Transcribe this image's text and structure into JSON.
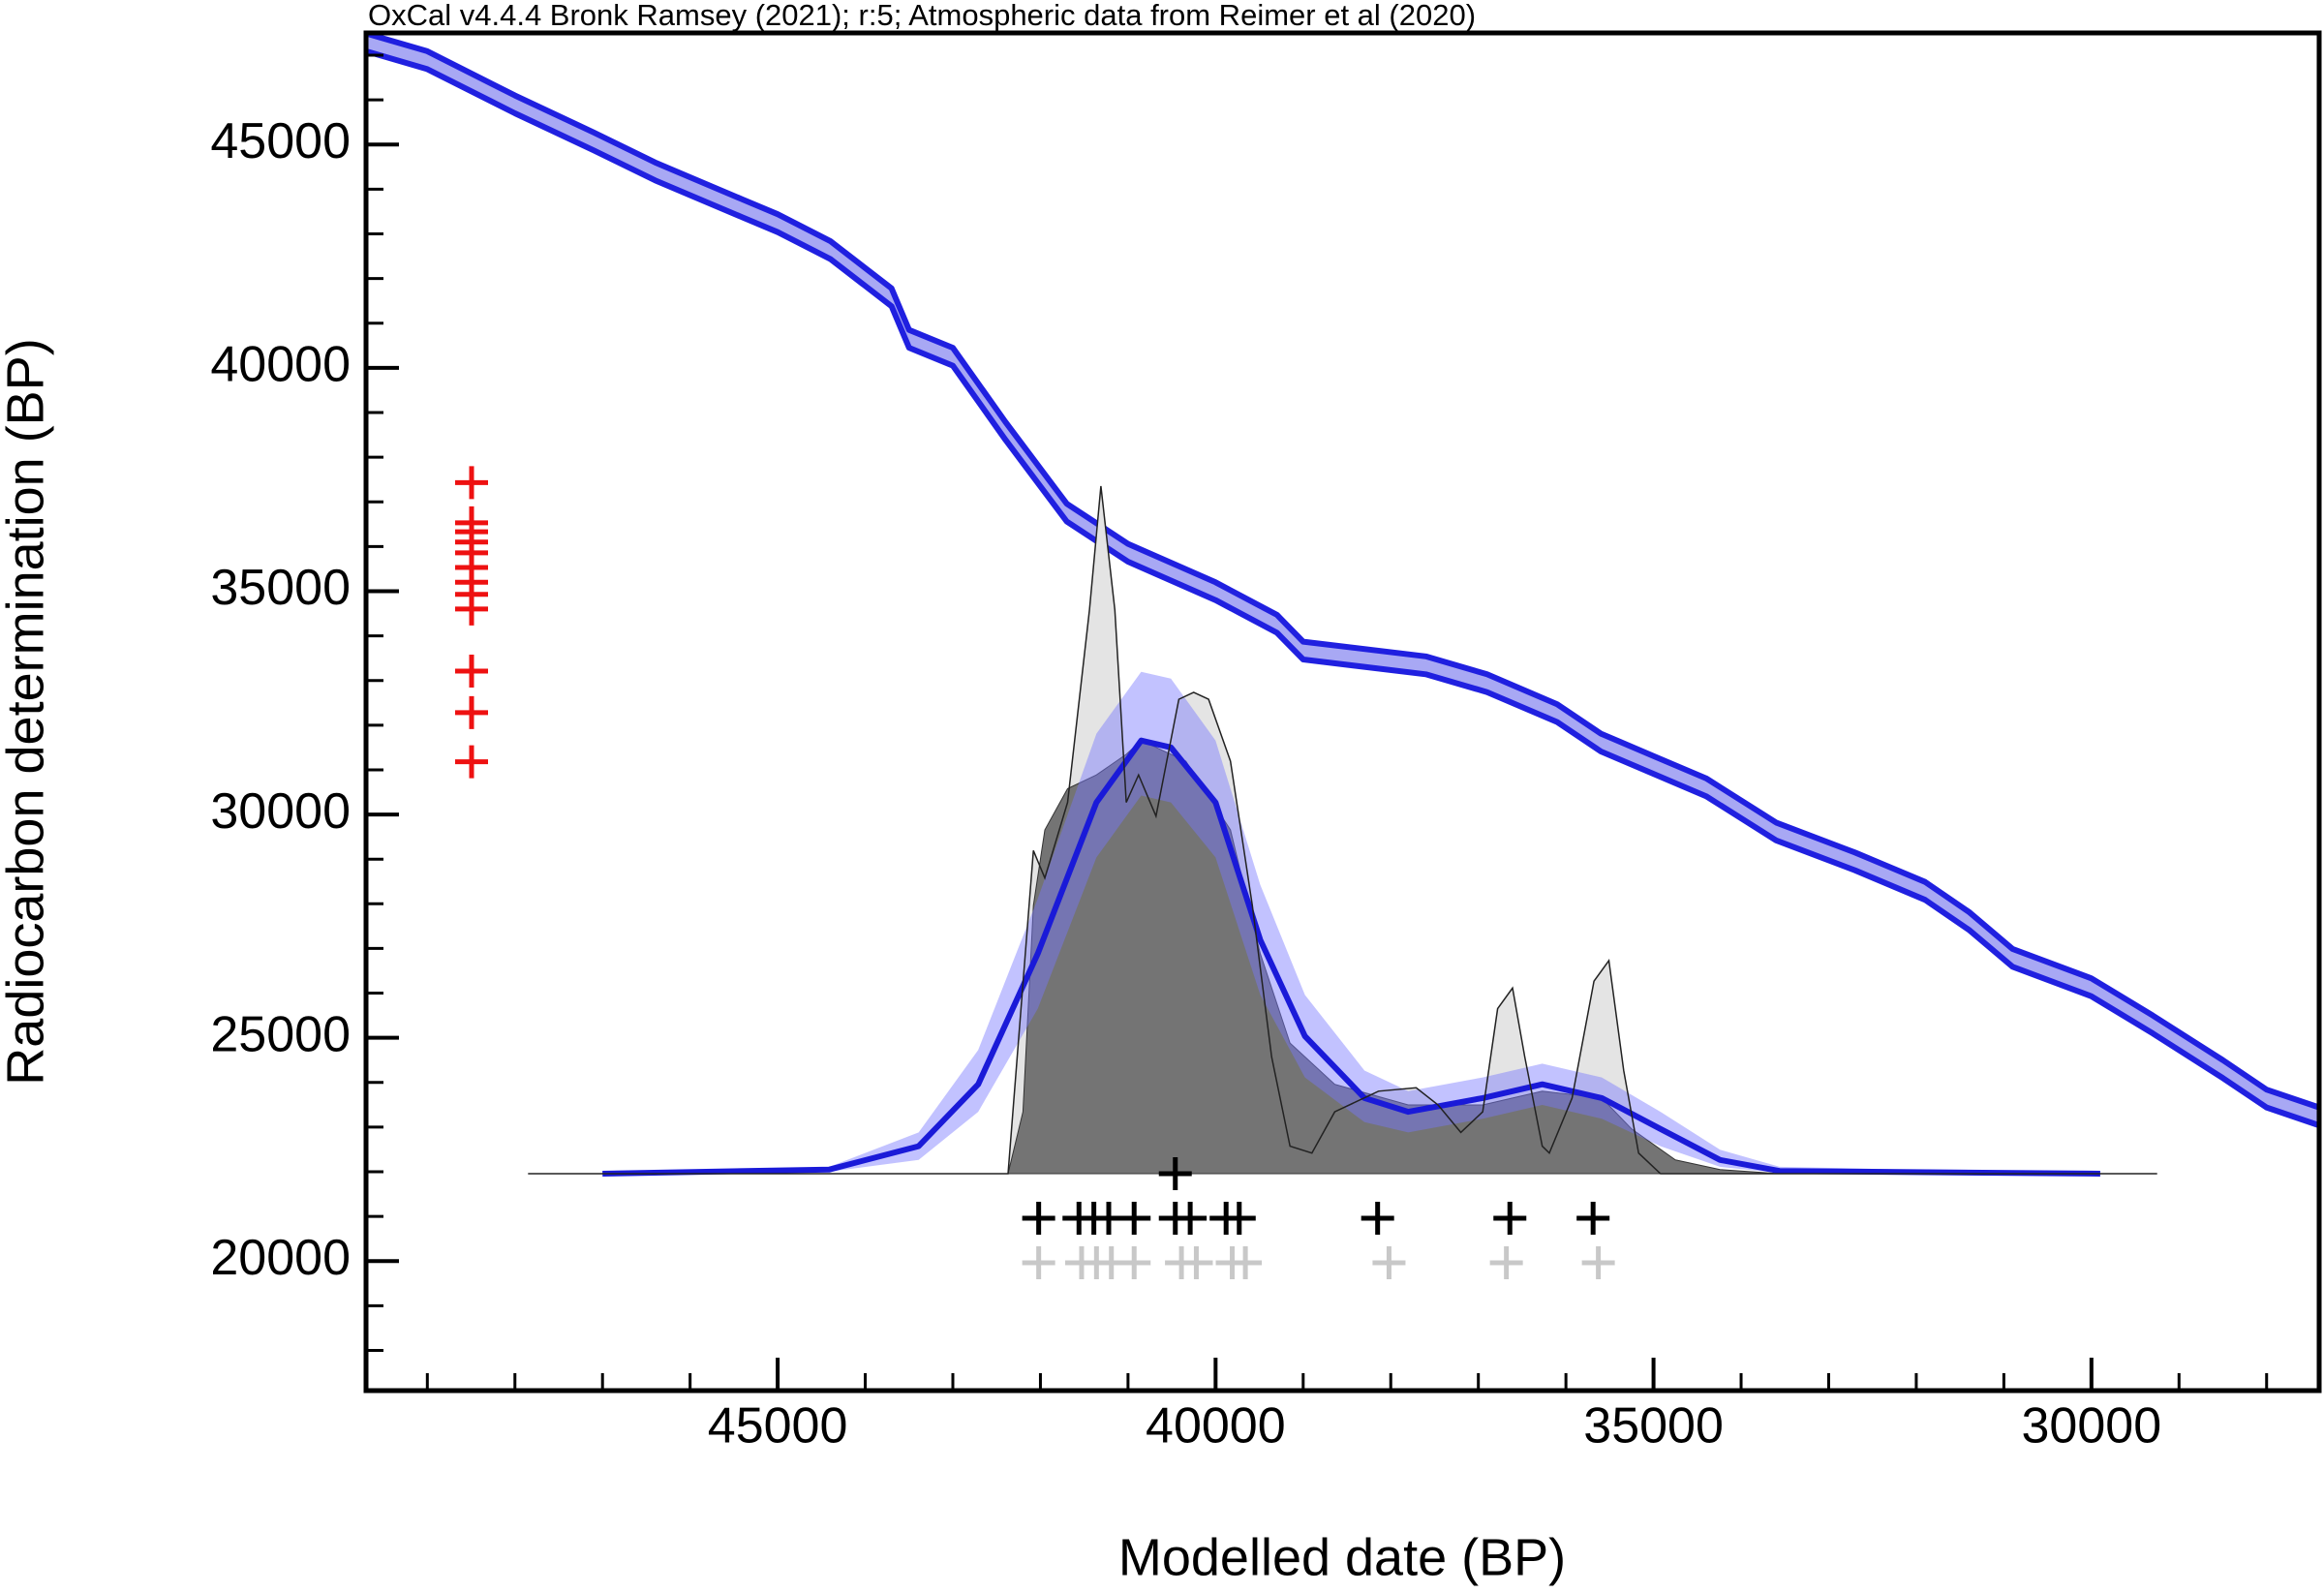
{
  "chart_data": {
    "type": "oxcal",
    "title": "OxCal v4.4.4 Bronk Ramsey (2021); r:5; Atmospheric data from Reimer et al (2020)",
    "xlabel": "Modelled date (BP)",
    "ylabel": "Radiocarbon determination (BP)",
    "xlim": [
      49700,
      27400
    ],
    "ylim": [
      17100,
      47500
    ],
    "xticks": [
      45000,
      40000,
      35000,
      30000
    ],
    "yticks": [
      20000,
      25000,
      30000,
      35000,
      40000,
      45000
    ],
    "xminorticks": [
      49000,
      48000,
      47000,
      46000,
      44000,
      43000,
      42000,
      41000,
      39000,
      38000,
      37000,
      36000,
      34000,
      33000,
      32000,
      31000,
      29000,
      28000
    ],
    "yminorticks": [
      18000,
      19000,
      21000,
      22000,
      23000,
      24000,
      26000,
      27000,
      28000,
      29000,
      31000,
      32000,
      33000,
      34000,
      36000,
      37000,
      38000,
      39000,
      41000,
      42000,
      43000,
      44000,
      46000,
      47000
    ],
    "calibration_curve": {
      "color": "#2020e0",
      "fill": "#a8a8f4",
      "x": [
        49700,
        49000,
        48000,
        47100,
        46400,
        45400,
        45000,
        44400,
        43700,
        43500,
        43000,
        42400,
        41700,
        41000,
        40000,
        39300,
        39000,
        37600,
        36900,
        36100,
        35600,
        35000,
        34400,
        33600,
        32700,
        31900,
        31400,
        30900,
        30000,
        29300,
        28500,
        28000,
        27400
      ],
      "upper": [
        47490,
        47090,
        46100,
        45270,
        44600,
        43770,
        43440,
        42840,
        41780,
        40850,
        40450,
        38790,
        36960,
        36060,
        35200,
        34470,
        33870,
        33540,
        33140,
        32470,
        31810,
        31310,
        30810,
        29820,
        29150,
        28490,
        27820,
        26990,
        26330,
        25500,
        24500,
        23840,
        23440
      ],
      "lower": [
        47090,
        46690,
        45700,
        44870,
        44200,
        43370,
        43040,
        42440,
        41380,
        40450,
        40050,
        38390,
        36560,
        35660,
        34800,
        34070,
        33470,
        33140,
        32740,
        32070,
        31410,
        30910,
        30410,
        29420,
        28750,
        28090,
        27420,
        26590,
        25930,
        25100,
        24100,
        23440,
        23040
      ]
    },
    "radiocarbon_dates": {
      "color": "#ee1111",
      "values": [
        37430,
        36530,
        36330,
        36100,
        35860,
        35530,
        35200,
        34930,
        34600,
        33210,
        32280,
        31180
      ]
    },
    "modelled_medians": {
      "color": "#000000",
      "values": [
        42020,
        41560,
        41390,
        41220,
        40930,
        40460,
        40290,
        39880,
        39730,
        38150,
        36640,
        35690
      ]
    },
    "unmodelled_medians": {
      "color": "#c8c8c8",
      "values": [
        42020,
        41530,
        41360,
        41190,
        40930,
        40390,
        40220,
        39810,
        39660,
        38020,
        36680,
        35630
      ]
    },
    "summary_median": 40460,
    "unmodelled_sum": {
      "color": "#e4e4e4",
      "x": [
        47850,
        42370,
        42080,
        41950,
        41690,
        41440,
        41310,
        41150,
        41020,
        40880,
        40680,
        40420,
        40250,
        40080,
        39830,
        39580,
        39360,
        39150,
        38900,
        38640,
        38140,
        37710,
        37460,
        37200,
        36950,
        36780,
        36610,
        36470,
        36270,
        36190,
        35930,
        35680,
        35510,
        35340,
        35170,
        34920,
        29250
      ],
      "values": [
        0,
        0,
        47,
        43,
        54,
        82,
        100,
        82,
        54,
        58,
        52,
        69,
        70,
        69,
        60,
        39,
        17,
        4,
        3,
        9,
        12,
        12.5,
        10,
        6,
        9,
        24,
        27,
        17,
        4,
        3,
        11,
        28,
        31,
        15,
        3,
        0,
        0
      ]
    },
    "modelled_sum": {
      "color": "#747474",
      "x": [
        42370,
        42200,
        42080,
        41950,
        41690,
        41360,
        41020,
        40850,
        40340,
        39830,
        39490,
        39150,
        38640,
        37800,
        36950,
        36270,
        35590,
        35250,
        34750,
        34240,
        33560
      ],
      "values": [
        0,
        9,
        39,
        50,
        56,
        58,
        61,
        63,
        60,
        50,
        32,
        19,
        13,
        10,
        10,
        12,
        11,
        6.5,
        2,
        0.6,
        0
      ]
    },
    "kde": {
      "color": "#1a1ad8",
      "band_color": "#7878ff",
      "x": [
        47000,
        44410,
        43390,
        42710,
        42030,
        41360,
        40850,
        40510,
        40000,
        39490,
        38980,
        38300,
        37800,
        36950,
        36270,
        35590,
        34920,
        34240,
        33560,
        29900
      ],
      "values": [
        0,
        0.6,
        4,
        13,
        32,
        54,
        63,
        62,
        54,
        34,
        20,
        11,
        9,
        11,
        13,
        11,
        6.5,
        2,
        0.4,
        0
      ],
      "upper": [
        0,
        1,
        6,
        18,
        40,
        64,
        73,
        72,
        63,
        42,
        26,
        15,
        12,
        14,
        16,
        14,
        9,
        3.5,
        1,
        0
      ],
      "lower": [
        0,
        0.3,
        2,
        9,
        24,
        46,
        55,
        54,
        46,
        26,
        14,
        7.5,
        6,
        8,
        10,
        8,
        4,
        1,
        0.1,
        0
      ]
    }
  }
}
